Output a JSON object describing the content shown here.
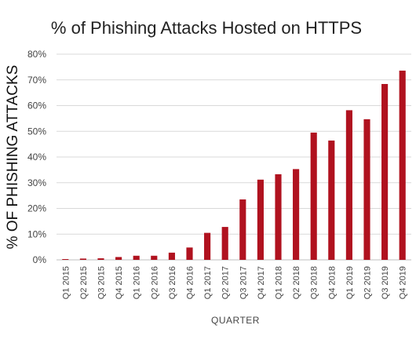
{
  "chart_data": {
    "type": "bar",
    "title": "% of Phishing Attacks Hosted on HTTPS",
    "xlabel": "QUARTER",
    "ylabel": "% OF PHISHING ATTACKS",
    "ylim": [
      0,
      80
    ],
    "yticks": [
      0,
      10,
      20,
      30,
      40,
      50,
      60,
      70,
      80
    ],
    "ytick_suffix": "%",
    "grid": true,
    "legend": "none",
    "categories": [
      "Q1 2015",
      "Q2 2015",
      "Q3 2015",
      "Q4 2015",
      "Q1 2016",
      "Q2 2016",
      "Q3 2016",
      "Q4 2016",
      "Q1 2017",
      "Q2 2017",
      "Q3 2017",
      "Q4 2017",
      "Q1 2018",
      "Q2 2018",
      "Q3 2018",
      "Q4 2018",
      "Q1 2019",
      "Q2 2019",
      "Q3 2019",
      "Q4 2019"
    ],
    "values": [
      0.3,
      0.5,
      0.6,
      1.1,
      1.6,
      1.6,
      2.8,
      4.8,
      10.5,
      12.8,
      23.5,
      31.2,
      33.3,
      35.3,
      49.5,
      46.4,
      58.2,
      54.7,
      68.4,
      73.6
    ],
    "colors": {
      "bar": "#b0121f",
      "grid": "#d9d9d9",
      "axis": "#bfbfbf",
      "text": "#222222"
    }
  }
}
